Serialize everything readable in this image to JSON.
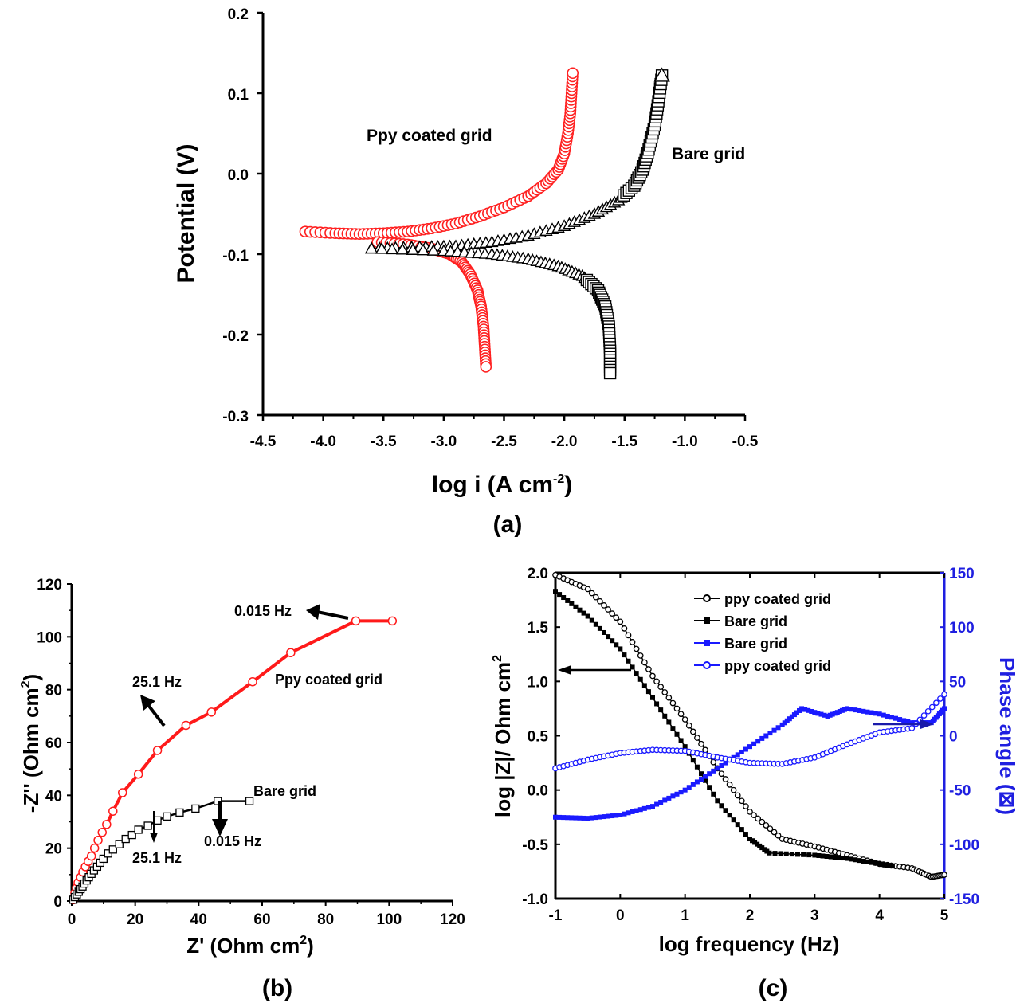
{
  "chart_data": [
    {
      "id": "a",
      "type": "scatter",
      "caption": "(a)",
      "xlabel_main": "log i (A cm",
      "xlabel_sup": "-2",
      "xlabel_end": ")",
      "ylabel": "Potential (V)",
      "xlim": [
        -4.5,
        -0.5
      ],
      "ylim": [
        -0.3,
        0.2
      ],
      "xticks": [
        "-4.5",
        "-4.0",
        "-3.5",
        "-3.0",
        "-2.5",
        "-2.0",
        "-1.5",
        "-1.0",
        "-0.5"
      ],
      "yticks": [
        "-0.3",
        "-0.2",
        "-0.1",
        "0.0",
        "0.1",
        "0.2"
      ],
      "series": [
        {
          "name": "Ppy coated grid",
          "color": "#ff2020",
          "marker": "circle",
          "anodic": [
            [
              -4.15,
              -0.072
            ],
            [
              -3.9,
              -0.074
            ],
            [
              -3.7,
              -0.075
            ],
            [
              -3.5,
              -0.074
            ],
            [
              -3.3,
              -0.072
            ],
            [
              -3.1,
              -0.068
            ],
            [
              -2.9,
              -0.062
            ],
            [
              -2.7,
              -0.053
            ],
            [
              -2.5,
              -0.042
            ],
            [
              -2.3,
              -0.028
            ],
            [
              -2.15,
              -0.012
            ],
            [
              -2.05,
              0.005
            ],
            [
              -2.0,
              0.025
            ],
            [
              -1.97,
              0.05
            ],
            [
              -1.95,
              0.075
            ],
            [
              -1.94,
              0.1
            ],
            [
              -1.93,
              0.125
            ]
          ],
          "cathodic": [
            [
              -3.55,
              -0.085
            ],
            [
              -3.3,
              -0.088
            ],
            [
              -3.1,
              -0.093
            ],
            [
              -2.95,
              -0.1
            ],
            [
              -2.85,
              -0.11
            ],
            [
              -2.78,
              -0.125
            ],
            [
              -2.72,
              -0.145
            ],
            [
              -2.69,
              -0.165
            ],
            [
              -2.67,
              -0.19
            ],
            [
              -2.66,
              -0.215
            ],
            [
              -2.65,
              -0.24
            ]
          ]
        },
        {
          "name": "Bare grid",
          "color": "#000000",
          "marker": "triangle/square",
          "anodic": [
            [
              -3.6,
              -0.093
            ],
            [
              -3.2,
              -0.091
            ],
            [
              -2.9,
              -0.09
            ],
            [
              -2.6,
              -0.085
            ],
            [
              -2.3,
              -0.077
            ],
            [
              -2.0,
              -0.065
            ],
            [
              -1.75,
              -0.05
            ],
            [
              -1.55,
              -0.033
            ],
            [
              -1.42,
              -0.015
            ],
            [
              -1.35,
              0.005
            ],
            [
              -1.3,
              0.03
            ],
            [
              -1.25,
              0.06
            ],
            [
              -1.22,
              0.09
            ],
            [
              -1.19,
              0.122
            ]
          ],
          "cathodic": [
            [
              -3.6,
              -0.093
            ],
            [
              -3.0,
              -0.096
            ],
            [
              -2.6,
              -0.1
            ],
            [
              -2.3,
              -0.106
            ],
            [
              -2.05,
              -0.115
            ],
            [
              -1.85,
              -0.127
            ],
            [
              -1.72,
              -0.145
            ],
            [
              -1.66,
              -0.165
            ],
            [
              -1.63,
              -0.19
            ],
            [
              -1.62,
              -0.22
            ],
            [
              -1.62,
              -0.248
            ]
          ]
        }
      ],
      "annotations": [
        "Ppy coated grid",
        "Bare grid"
      ]
    },
    {
      "id": "b",
      "type": "line",
      "caption": "(b)",
      "xlabel_main": "Z' (Ohm cm",
      "xlabel_sup": "2",
      "xlabel_end": ")",
      "ylabel_main": "-Z'' (Ohm cm",
      "ylabel_sup": "2",
      "ylabel_end": ")",
      "xlim": [
        0,
        120
      ],
      "ylim": [
        0,
        120
      ],
      "xticks": [
        "0",
        "20",
        "40",
        "60",
        "80",
        "100",
        "120"
      ],
      "yticks": [
        "0",
        "20",
        "40",
        "60",
        "80",
        "100",
        "120"
      ],
      "series": [
        {
          "name": "Ppy coated grid",
          "color": "#ff1a1a",
          "points": [
            [
              0.5,
              0.5
            ],
            [
              1,
              3
            ],
            [
              1.5,
              5
            ],
            [
              2,
              7
            ],
            [
              2.8,
              9
            ],
            [
              3.5,
              11
            ],
            [
              4.3,
              13
            ],
            [
              5.2,
              15
            ],
            [
              6.2,
              17
            ],
            [
              7.2,
              20
            ],
            [
              8.3,
              23
            ],
            [
              9.6,
              26
            ],
            [
              11,
              29
            ],
            [
              13,
              34
            ],
            [
              16,
              41
            ],
            [
              21,
              48
            ],
            [
              27,
              57
            ],
            [
              36,
              66.5
            ],
            [
              44,
              71.5
            ],
            [
              57,
              83
            ],
            [
              69,
              94
            ],
            [
              89.5,
              106
            ],
            [
              101,
              106
            ]
          ]
        },
        {
          "name": "Bare grid",
          "color": "#000000",
          "points": [
            [
              0.5,
              0.5
            ],
            [
              1,
              1.5
            ],
            [
              1.6,
              2.5
            ],
            [
              2.2,
              3.5
            ],
            [
              2.8,
              4.5
            ],
            [
              3.4,
              5.5
            ],
            [
              4,
              6.6
            ],
            [
              4.7,
              7.8
            ],
            [
              5.4,
              9
            ],
            [
              6.2,
              10.3
            ],
            [
              7,
              11.6
            ],
            [
              8,
              13
            ],
            [
              9,
              14.5
            ],
            [
              10,
              16
            ],
            [
              11.5,
              18
            ],
            [
              13,
              19.5
            ],
            [
              15,
              21.5
            ],
            [
              17,
              23.5
            ],
            [
              19,
              25
            ],
            [
              21,
              27
            ],
            [
              24,
              28.5
            ],
            [
              27,
              30.5
            ],
            [
              30,
              32
            ],
            [
              34,
              33.5
            ],
            [
              39,
              35
            ],
            [
              46,
              37.8
            ],
            [
              56,
              37.8
            ]
          ]
        }
      ],
      "annotations": [
        "0.015 Hz",
        "25.1 Hz",
        "Ppy coated grid",
        "Bare grid",
        "25.1 Hz",
        "0.015 Hz"
      ]
    },
    {
      "id": "c",
      "type": "line",
      "caption": "(c)",
      "xlabel": "log frequency (Hz)",
      "ylabel_main": "log |Z|/ Ohm cm",
      "ylabel_sup": "2",
      "ylabel_right": "Phase angle (⊠)",
      "xlim": [
        -1,
        5
      ],
      "ylim_left": [
        -1.0,
        2.0
      ],
      "ylim_right": [
        -150,
        150
      ],
      "xticks": [
        "-1",
        "0",
        "1",
        "2",
        "3",
        "4",
        "5"
      ],
      "yticks_left": [
        "-1.0",
        "-0.5",
        "0.0",
        "0.5",
        "1.0",
        "1.5",
        "2.0"
      ],
      "yticks_right": [
        "-150",
        "-100",
        "-50",
        "0",
        "50",
        "100",
        "150"
      ],
      "legend": [
        "ppy coated grid",
        "Bare grid",
        "Bare grid",
        "ppy coated grid"
      ],
      "legend_position": "top-right",
      "series": [
        {
          "name": "ppy coated grid",
          "axis": "left",
          "color": "#000000",
          "marker": "open-circle",
          "points": [
            [
              -1,
              1.98
            ],
            [
              -0.5,
              1.85
            ],
            [
              0,
              1.55
            ],
            [
              0.5,
              1.05
            ],
            [
              1,
              0.65
            ],
            [
              1.5,
              0.2
            ],
            [
              2,
              -0.2
            ],
            [
              2.5,
              -0.45
            ],
            [
              3,
              -0.52
            ],
            [
              3.5,
              -0.6
            ],
            [
              4,
              -0.68
            ],
            [
              4.5,
              -0.72
            ],
            [
              4.8,
              -0.8
            ],
            [
              5,
              -0.78
            ]
          ]
        },
        {
          "name": "Bare grid",
          "axis": "left",
          "color": "#000000",
          "marker": "filled-square",
          "points": [
            [
              -1,
              1.83
            ],
            [
              -0.5,
              1.6
            ],
            [
              0,
              1.3
            ],
            [
              0.5,
              0.85
            ],
            [
              1,
              0.4
            ],
            [
              1.5,
              -0.1
            ],
            [
              2,
              -0.45
            ],
            [
              2.3,
              -0.58
            ],
            [
              3,
              -0.6
            ],
            [
              3.5,
              -0.63
            ],
            [
              4,
              -0.68
            ],
            [
              4.2,
              -0.7
            ]
          ]
        },
        {
          "name": "Bare grid",
          "axis": "right",
          "color": "#1a1aff",
          "marker": "filled-square",
          "points": [
            [
              -1,
              -75
            ],
            [
              -0.5,
              -76
            ],
            [
              0,
              -73
            ],
            [
              0.5,
              -65
            ],
            [
              1,
              -50
            ],
            [
              1.5,
              -30
            ],
            [
              2,
              -10
            ],
            [
              2.5,
              10
            ],
            [
              2.8,
              25
            ],
            [
              3.2,
              18
            ],
            [
              3.5,
              25
            ],
            [
              4,
              20
            ],
            [
              4.5,
              12
            ],
            [
              4.8,
              12
            ],
            [
              5,
              25
            ]
          ]
        },
        {
          "name": "ppy coated grid",
          "axis": "right",
          "color": "#1a1aff",
          "marker": "open-circle",
          "points": [
            [
              -1,
              -30
            ],
            [
              -0.5,
              -22
            ],
            [
              0,
              -16
            ],
            [
              0.5,
              -13
            ],
            [
              1,
              -14
            ],
            [
              1.5,
              -20
            ],
            [
              2,
              -25
            ],
            [
              2.5,
              -26
            ],
            [
              3,
              -20
            ],
            [
              3.5,
              -8
            ],
            [
              4,
              3
            ],
            [
              4.5,
              7
            ],
            [
              5,
              38
            ]
          ]
        }
      ]
    }
  ]
}
